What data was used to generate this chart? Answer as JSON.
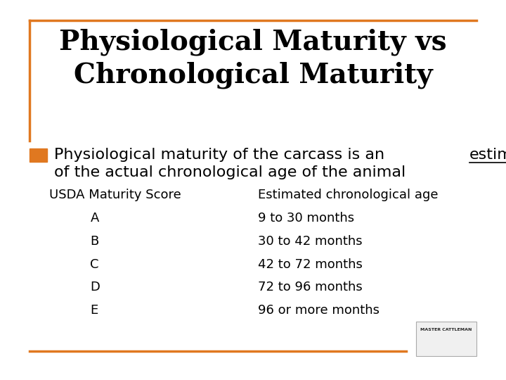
{
  "title_line1": "Physiological Maturity vs",
  "title_line2": "Chronological Maturity",
  "bullet_text_part1": "Physiological maturity of the carcass is an ",
  "bullet_underlined": "estimate",
  "bullet_text_line2": "of the actual chronological age of the animal",
  "col1_header": "USDA Maturity Score",
  "col2_header": "Estimated chronological age",
  "scores": [
    "A",
    "B",
    "C",
    "D",
    "E"
  ],
  "ages": [
    "9 to 30 months",
    "30 to 42 months",
    "42 to 72 months",
    "72 to 96 months",
    "96 or more months"
  ],
  "background_color": "#ffffff",
  "title_color": "#000000",
  "bullet_color": "#000000",
  "bullet_square_color": "#E07820",
  "border_color": "#E07820",
  "table_text_color": "#000000",
  "bottom_line_color": "#E07820",
  "title_fontsize": 28,
  "bullet_fontsize": 16,
  "table_header_fontsize": 13,
  "table_data_fontsize": 13
}
